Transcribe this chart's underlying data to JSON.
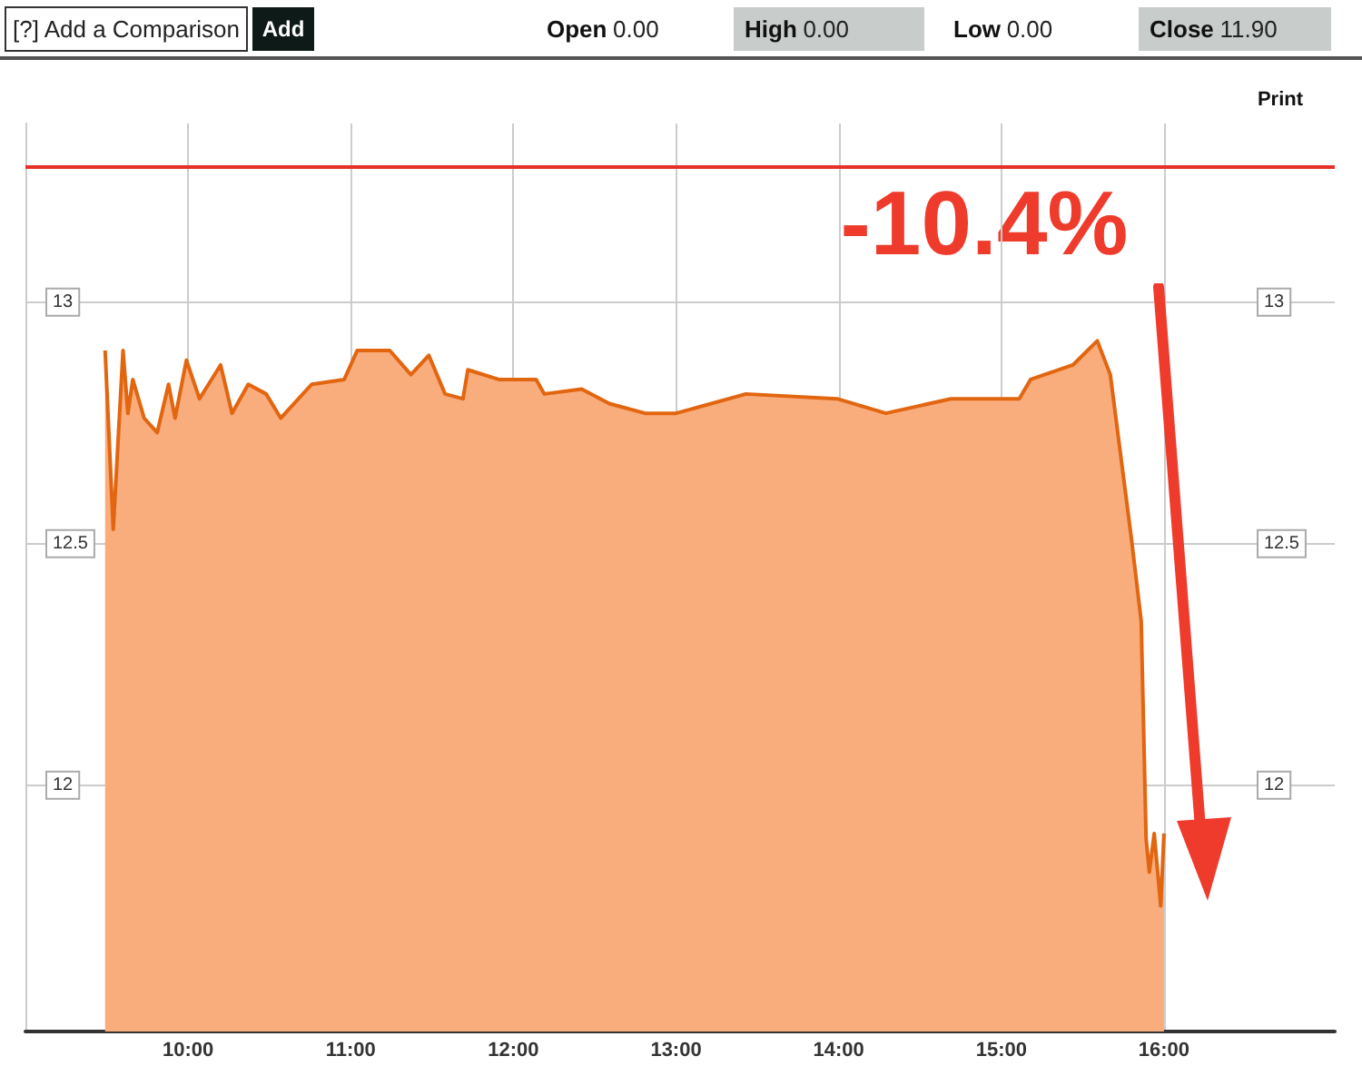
{
  "chart_data": {
    "type": "area",
    "x": [
      9.49,
      9.54,
      9.6,
      9.63,
      9.66,
      9.73,
      9.81,
      9.88,
      9.92,
      9.99,
      10.07,
      10.2,
      10.27,
      10.37,
      10.48,
      10.57,
      10.76,
      10.96,
      11.04,
      11.24,
      11.37,
      11.48,
      11.58,
      11.69,
      11.72,
      11.91,
      12.14,
      12.19,
      12.42,
      12.59,
      12.81,
      13.0,
      13.43,
      13.99,
      14.29,
      14.69,
      15.11,
      15.18,
      15.44,
      15.59,
      15.67,
      15.8,
      15.86,
      15.89,
      15.91,
      15.94,
      15.98,
      16.0
    ],
    "series": [
      {
        "color": "#e2650f",
        "values": [
          12.9,
          12.53,
          12.9,
          12.77,
          12.84,
          12.76,
          12.73,
          12.83,
          12.76,
          12.88,
          12.8,
          12.87,
          12.77,
          12.83,
          12.81,
          12.76,
          12.83,
          12.84,
          12.9,
          12.9,
          12.85,
          12.89,
          12.81,
          12.8,
          12.86,
          12.84,
          12.84,
          12.81,
          12.82,
          12.79,
          12.77,
          12.77,
          12.81,
          12.8,
          12.77,
          12.8,
          12.8,
          12.84,
          12.87,
          12.92,
          12.85,
          12.51,
          12.34,
          11.89,
          11.82,
          11.9,
          11.75,
          11.9
        ]
      }
    ],
    "xlim": [
      9,
      17.05
    ],
    "xticks": [
      {
        "value": 10,
        "label": "10:00"
      },
      {
        "value": 11,
        "label": "11:00"
      },
      {
        "value": 12,
        "label": "12:00"
      },
      {
        "value": 13,
        "label": "13:00"
      },
      {
        "value": 14,
        "label": "14:00"
      },
      {
        "value": 15,
        "label": "15:00"
      },
      {
        "value": 16,
        "label": "16:00"
      }
    ],
    "ylim": [
      11.49,
      13.37
    ],
    "yticks": [
      12,
      12.5,
      13
    ],
    "y2lim": [
      11.49,
      13.37
    ],
    "y2ticks": [
      12,
      12.5,
      13
    ],
    "ref_lines": [
      {
        "axis": "y",
        "value": 13.28,
        "label": null,
        "color": "#e8302a"
      }
    ],
    "grid": true,
    "annotations": [
      "[?] Add a Comparison",
      "Add",
      "Open 0.00",
      "High 0.00",
      "Low 0.00",
      "Close 11.90",
      "Print",
      "-10.4%"
    ]
  }
}
